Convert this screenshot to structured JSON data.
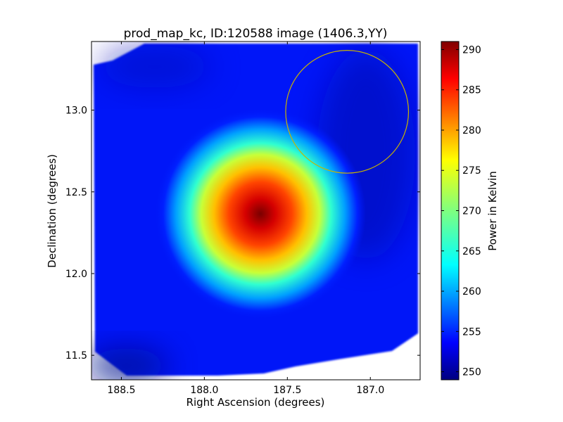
{
  "chart_data": {
    "type": "heatmap",
    "title": "prod_map_kc, ID:120588 image (1406.3,YY)",
    "xlabel": "Right Ascension (degrees)",
    "ylabel": "Declination (degrees)",
    "xlim": [
      188.68,
      186.7
    ],
    "ylim": [
      11.35,
      13.42
    ],
    "x_ticks": [
      188.5,
      188.0,
      187.5,
      187.0
    ],
    "x_tick_labels": [
      "188.5",
      "188.0",
      "187.5",
      "187.0"
    ],
    "y_ticks": [
      11.5,
      12.0,
      12.5,
      13.0
    ],
    "y_tick_labels": [
      "11.5",
      "12.0",
      "12.5",
      "13.0"
    ],
    "colormap": "jet",
    "colorbar": {
      "label": "Power in Kelvin",
      "range": [
        249,
        291
      ],
      "ticks": [
        250,
        255,
        260,
        265,
        270,
        275,
        280,
        285,
        290
      ],
      "tick_labels": [
        "250",
        "255",
        "260",
        "265",
        "270",
        "275",
        "280",
        "285",
        "290"
      ]
    },
    "peak": {
      "ra": 187.68,
      "dec": 12.38,
      "value": 291
    },
    "background_level": 251,
    "annotation": {
      "shape": "circle",
      "color": "#c8b400",
      "center_ra": 187.14,
      "center_dec": 12.99,
      "radius_deg": 0.37
    },
    "grid": false
  }
}
